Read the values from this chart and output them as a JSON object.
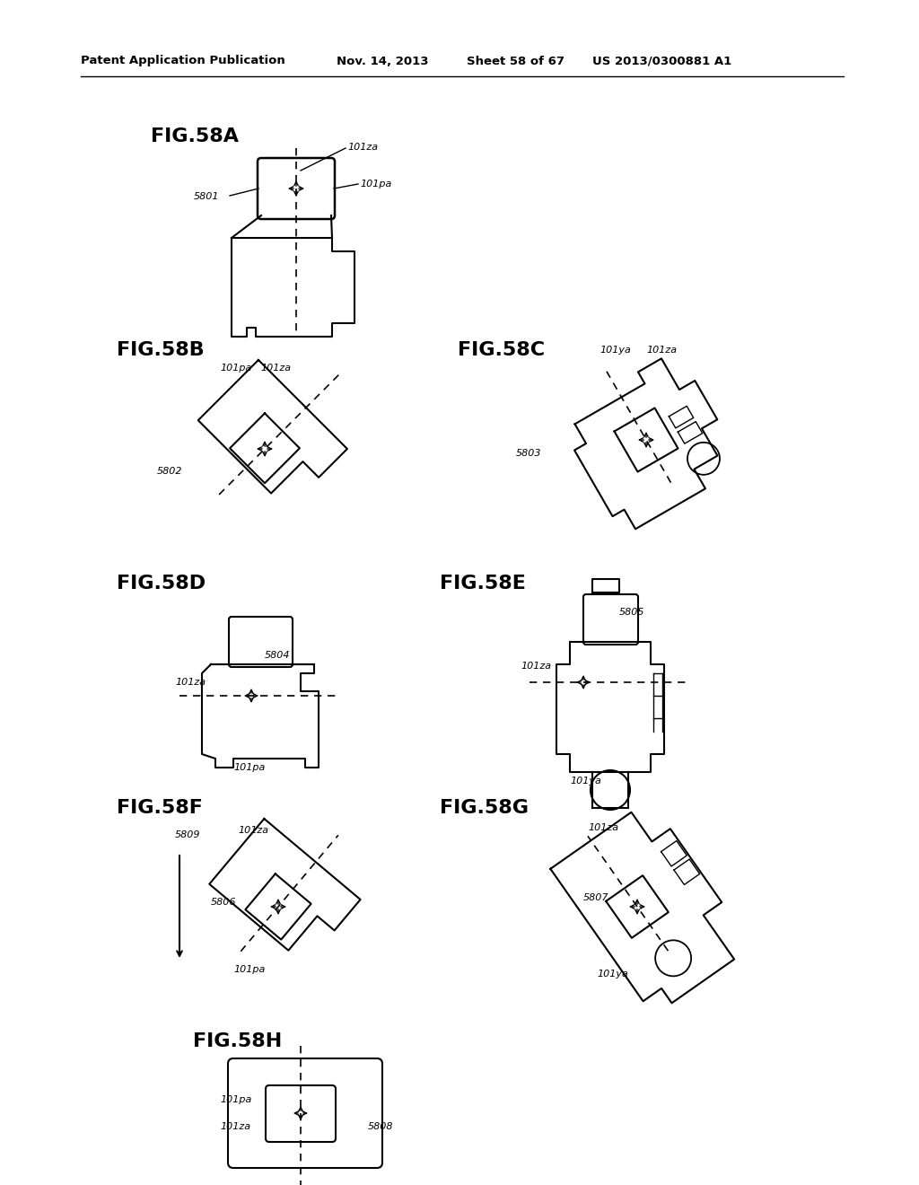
{
  "bg_color": "#ffffff",
  "header_text": "Patent Application Publication",
  "header_date": "Nov. 14, 2013",
  "header_sheet": "Sheet 58 of 67",
  "header_patent": "US 2013/0300881 A1"
}
